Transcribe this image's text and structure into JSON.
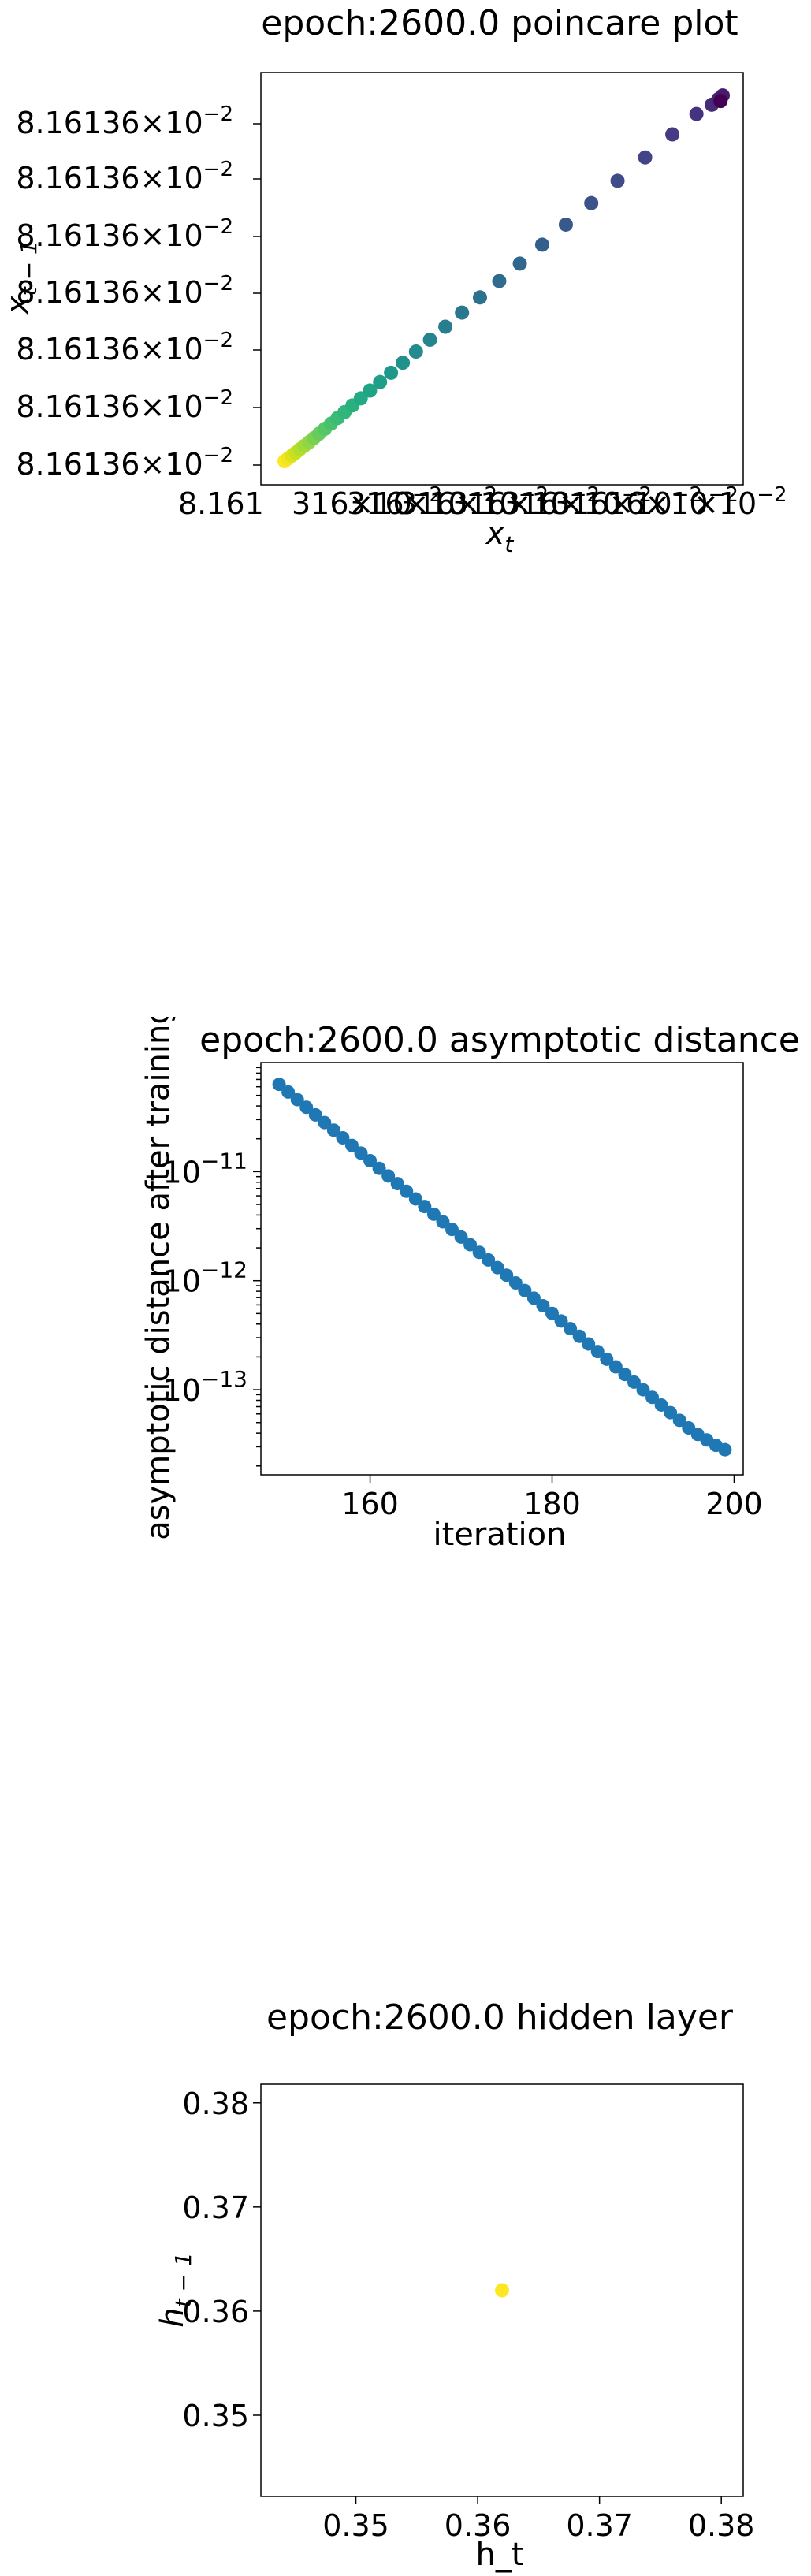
{
  "charts": {
    "poincare": {
      "title": "epoch:2600.0 poincare plot",
      "ylabel_base": "x",
      "ylabel_sub": "t − 1",
      "xlabel_base": "x",
      "xlabel_sub": "t",
      "yticks_mantissa": [
        "8.16136",
        "8.16136",
        "8.16136",
        "8.16136",
        "8.16136",
        "8.16136",
        "8.16136"
      ],
      "tick_exp": "−2",
      "xticks": [
        {
          "text": "8.161",
          "sup": ""
        },
        {
          "text": "316×10",
          "sup": "−2"
        },
        {
          "text": "316×10",
          "sup": "−2"
        },
        {
          "text": "316×10",
          "sup": "−2"
        },
        {
          "text": "316×10",
          "sup": "−2"
        },
        {
          "text": "316×10",
          "sup": "−2"
        },
        {
          "text": "316×10",
          "sup": "−2"
        },
        {
          "text": "16×10",
          "sup": "−2"
        },
        {
          "text": "×10",
          "sup": "−2"
        }
      ]
    },
    "asymptotic": {
      "title": "epoch:2600.0 asymptotic distance",
      "ylabel": "asymptotic distance after training",
      "xlabel": "iteration",
      "xticks": [
        "160",
        "180",
        "200"
      ],
      "yticks": [
        {
          "base": "10",
          "exp": "−11"
        },
        {
          "base": "10",
          "exp": "−12"
        },
        {
          "base": "10",
          "exp": "−13"
        }
      ]
    },
    "hidden": {
      "title": "epoch:2600.0 hidden layer",
      "ylabel_base": "h",
      "ylabel_sub": "t − 1",
      "xlabel": "h_t",
      "xticks": [
        "0.35",
        "0.36",
        "0.37",
        "0.38"
      ],
      "yticks": [
        "0.35",
        "0.36",
        "0.37",
        "0.38"
      ]
    }
  },
  "chart_data": [
    {
      "type": "scatter",
      "title": "epoch:2600.0 poincare plot",
      "xlabel": "x_t",
      "ylabel": "x_{t-1}",
      "yscale": "log",
      "xscale": "log",
      "colormap": "viridis",
      "note_values": "all points round to 8.16136e-2 at the printed precision; plotted as relative positions along the diagonal",
      "x": [
        0.0,
        0.008,
        0.017,
        0.026,
        0.035,
        0.045,
        0.056,
        0.067,
        0.079,
        0.092,
        0.106,
        0.121,
        0.137,
        0.155,
        0.174,
        0.195,
        0.218,
        0.243,
        0.27,
        0.3,
        0.332,
        0.367,
        0.405,
        0.446,
        0.49,
        0.537,
        0.588,
        0.642,
        0.7,
        0.76,
        0.823,
        0.885,
        0.94,
        0.975,
        0.99,
        1.0,
        0.995
      ],
      "y": [
        0.0,
        0.007,
        0.015,
        0.023,
        0.032,
        0.041,
        0.051,
        0.062,
        0.074,
        0.087,
        0.101,
        0.116,
        0.132,
        0.15,
        0.169,
        0.19,
        0.213,
        0.238,
        0.265,
        0.295,
        0.327,
        0.362,
        0.4,
        0.441,
        0.485,
        0.532,
        0.583,
        0.637,
        0.695,
        0.755,
        0.818,
        0.88,
        0.935,
        0.96,
        0.975,
        0.985,
        0.97
      ],
      "colors": [
        "#fde725",
        "#f1e51d",
        "#dde318",
        "#c8e020",
        "#b5de2b",
        "#a2da37",
        "#8fd744",
        "#7ad151",
        "#67cc5c",
        "#56c667",
        "#47c16e",
        "#3bbb75",
        "#31b57b",
        "#2ab07f",
        "#24aa83",
        "#20a486",
        "#1f9e89",
        "#1f988b",
        "#21918c",
        "#238a8d",
        "#25848e",
        "#277f8e",
        "#29798e",
        "#2c728e",
        "#2e6b8e",
        "#31668e",
        "#345f8d",
        "#37598c",
        "#3b528b",
        "#3e4c8a",
        "#414487",
        "#443b84",
        "#46337f",
        "#472c7a",
        "#482374",
        "#481b6d",
        "#440154"
      ]
    },
    {
      "type": "scatter",
      "title": "epoch:2600.0 asymptotic distance",
      "xlabel": "iteration",
      "ylabel": "asymptotic distance after training",
      "yscale": "log",
      "xlim": [
        148,
        201
      ],
      "ylim_log10": [
        -13.78,
        -10.0
      ],
      "color": "#1f77b4",
      "x": [
        150,
        151,
        152,
        153,
        154,
        155,
        156,
        157,
        158,
        159,
        160,
        161,
        162,
        163,
        164,
        165,
        166,
        167,
        168,
        169,
        170,
        171,
        172,
        173,
        174,
        175,
        176,
        177,
        178,
        179,
        180,
        181,
        182,
        183,
        184,
        185,
        186,
        187,
        188,
        189,
        190,
        191,
        192,
        193,
        194,
        195,
        196,
        197,
        198,
        199
      ],
      "y_log10": [
        -10.2,
        -10.27,
        -10.34,
        -10.41,
        -10.48,
        -10.55,
        -10.62,
        -10.69,
        -10.76,
        -10.83,
        -10.9,
        -10.97,
        -11.04,
        -11.11,
        -11.18,
        -11.25,
        -11.32,
        -11.39,
        -11.46,
        -11.53,
        -11.6,
        -11.67,
        -11.74,
        -11.81,
        -11.88,
        -11.95,
        -12.02,
        -12.09,
        -12.16,
        -12.23,
        -12.3,
        -12.37,
        -12.44,
        -12.51,
        -12.58,
        -12.65,
        -12.72,
        -12.79,
        -12.86,
        -12.93,
        -13.0,
        -13.07,
        -13.14,
        -13.21,
        -13.28,
        -13.35,
        -13.41,
        -13.46,
        -13.51,
        -13.55
      ]
    },
    {
      "type": "scatter",
      "title": "epoch:2600.0 hidden layer",
      "xlabel": "h_t",
      "ylabel": "h_{t-1}",
      "xlim": [
        0.3422,
        0.3818
      ],
      "ylim": [
        0.3422,
        0.3818
      ],
      "color": "#fde725",
      "x": [
        0.362
      ],
      "y": [
        0.362
      ]
    }
  ]
}
